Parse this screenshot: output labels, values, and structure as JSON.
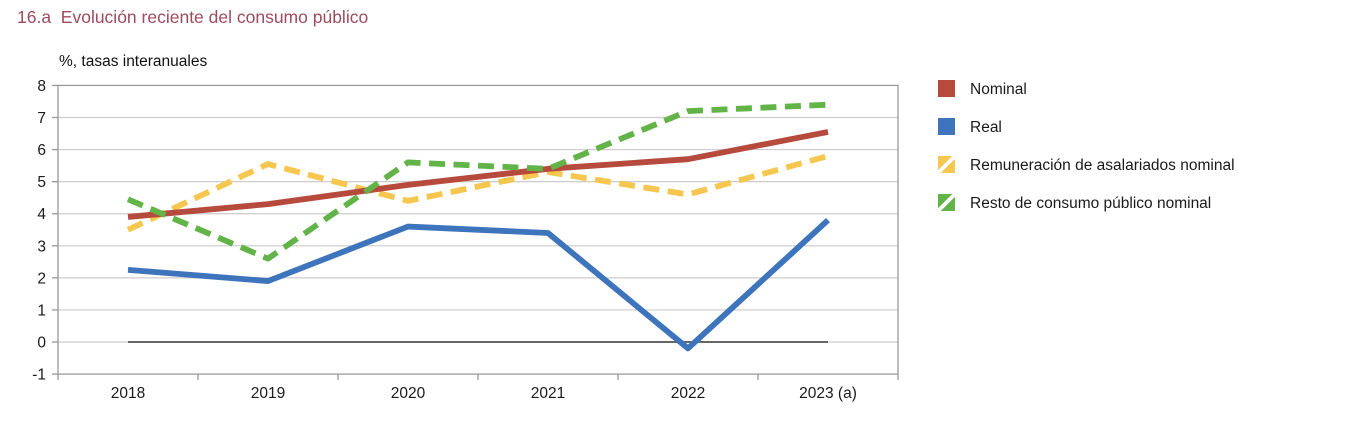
{
  "title": "16.a  Evolución reciente del consumo público",
  "subtitle": "%, tasas interanuales",
  "colors": {
    "title": "#9e4b5e",
    "text": "#1a1a1a",
    "grid": "#cccccc",
    "axis": "#999999",
    "zero_line": "#666666",
    "background": "#ffffff"
  },
  "chart_data": {
    "type": "line",
    "title": "16.a Evolución reciente del consumo público",
    "ylabel": "%, tasas interanuales",
    "xlabel": "",
    "categories": [
      "2018",
      "2019",
      "2020",
      "2021",
      "2022",
      "2023 (a)"
    ],
    "series": [
      {
        "name": "Nominal",
        "color": "#b64b3d",
        "dashed": false,
        "values": [
          3.9,
          4.3,
          4.9,
          5.4,
          5.7,
          6.55
        ]
      },
      {
        "name": "Real",
        "color": "#3e74bc",
        "dashed": false,
        "values": [
          2.25,
          1.9,
          3.6,
          3.4,
          -0.2,
          3.8
        ]
      },
      {
        "name": "Remuneración de asalariados nominal",
        "color": "#f6c64e",
        "dashed": true,
        "values": [
          3.5,
          5.55,
          4.4,
          5.3,
          4.6,
          5.8
        ]
      },
      {
        "name": "Resto de consumo público nominal",
        "color": "#62b348",
        "dashed": true,
        "values": [
          4.45,
          2.6,
          5.6,
          5.4,
          7.2,
          7.4
        ]
      }
    ],
    "ylim": [
      -1,
      8
    ],
    "ytick_step": 1,
    "grid": true,
    "legend_position": "right",
    "z_order": [
      2,
      0,
      3,
      1
    ]
  }
}
